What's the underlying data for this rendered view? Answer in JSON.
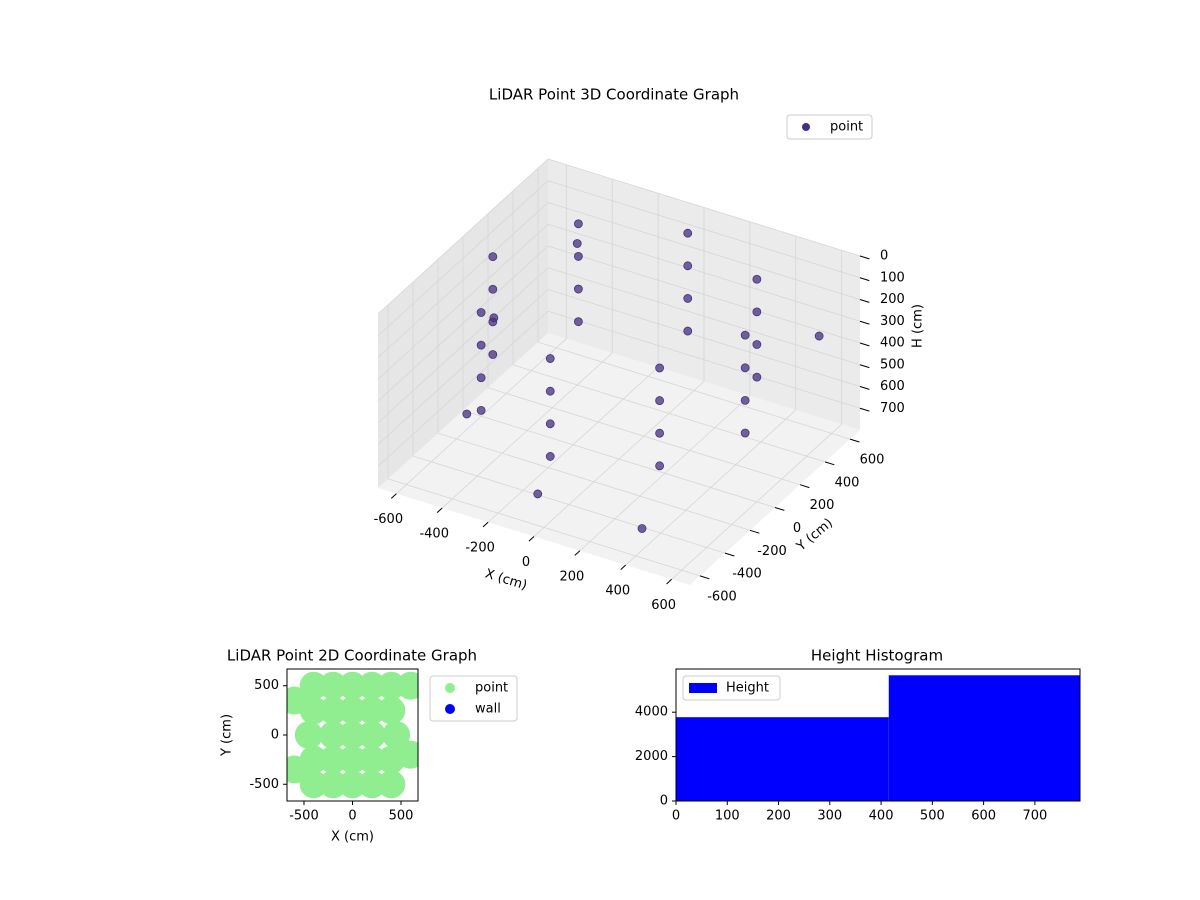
{
  "chart_data": [
    {
      "type": "scatter3d",
      "title": "LiDAR Point 3D Coordinate Graph",
      "xlabel": "X (cm)",
      "ylabel": "Y (cm)",
      "zlabel": "H (cm)",
      "xlim": [
        -680,
        680
      ],
      "ylim": [
        -680,
        680
      ],
      "zlim": [
        800,
        0
      ],
      "xticks": [
        -600,
        -400,
        -200,
        0,
        200,
        400,
        600
      ],
      "yticks": [
        -600,
        -400,
        -200,
        0,
        200,
        400,
        600
      ],
      "zticks": [
        0,
        100,
        200,
        300,
        400,
        500,
        600,
        700
      ],
      "grid": true,
      "legend": "upper right",
      "series": [
        {
          "name": "point",
          "color": "#46307e",
          "x": [
            550,
            550,
            550,
            550,
            389,
            389,
            389,
            389,
            0,
            0,
            0,
            0,
            -389,
            -389,
            -389,
            -389,
            -550,
            -550,
            -550,
            -550,
            -389,
            -389,
            -389,
            -389,
            0,
            0,
            0,
            0,
            389,
            389,
            389,
            389,
            -600,
            -500,
            400,
            600,
            -400,
            0
          ],
          "y": [
            0,
            0,
            0,
            0,
            389,
            389,
            389,
            389,
            550,
            550,
            550,
            550,
            389,
            389,
            389,
            389,
            0,
            0,
            0,
            0,
            -389,
            -389,
            -389,
            -389,
            -550,
            -550,
            -550,
            -550,
            -389,
            -389,
            -389,
            -389,
            100,
            -300,
            -550,
            500,
            400,
            -650
          ],
          "z": [
            50,
            200,
            350,
            500,
            50,
            200,
            350,
            500,
            50,
            200,
            350,
            500,
            50,
            200,
            350,
            500,
            50,
            200,
            350,
            500,
            50,
            200,
            350,
            500,
            50,
            200,
            350,
            500,
            50,
            200,
            350,
            500,
            400,
            600,
            700,
            300,
            150,
            620
          ]
        }
      ]
    },
    {
      "type": "scatter",
      "title": "LiDAR Point 2D Coordinate Graph",
      "xlabel": "X (cm)",
      "ylabel": "Y (cm)",
      "xlim": [
        -675,
        675
      ],
      "ylim": [
        -670,
        670
      ],
      "xticks": [
        -500,
        0,
        500
      ],
      "yticks": [
        -500,
        0,
        500
      ],
      "legend": "outside upper right",
      "series": [
        {
          "name": "point",
          "color": "#90ee90",
          "x": [
            -400,
            -200,
            0,
            200,
            400,
            -400,
            -200,
            0,
            200,
            400,
            -450,
            -200,
            0,
            200,
            450,
            -400,
            -200,
            0,
            200,
            400,
            -400,
            -200,
            0,
            200,
            400,
            600,
            -600,
            600,
            -600
          ],
          "y": [
            -500,
            -500,
            -500,
            -500,
            -500,
            -250,
            -250,
            -250,
            -250,
            -250,
            0,
            0,
            0,
            0,
            0,
            250,
            250,
            250,
            250,
            250,
            500,
            500,
            500,
            500,
            500,
            500,
            -350,
            -200,
            350
          ]
        },
        {
          "name": "wall",
          "color": "#0000ff",
          "x": [],
          "y": []
        }
      ]
    },
    {
      "type": "histogram",
      "title": "Height Histogram",
      "xlim": [
        0,
        788
      ],
      "ylim": [
        0,
        5946
      ],
      "xticks": [
        0,
        100,
        200,
        300,
        400,
        500,
        600,
        700
      ],
      "yticks": [
        0,
        2000,
        4000
      ],
      "legend": "upper left",
      "series": [
        {
          "name": "Height",
          "color": "#0000ff",
          "bins": [
            0,
            415,
            788
          ],
          "values": [
            3775,
            5663
          ]
        }
      ]
    }
  ]
}
